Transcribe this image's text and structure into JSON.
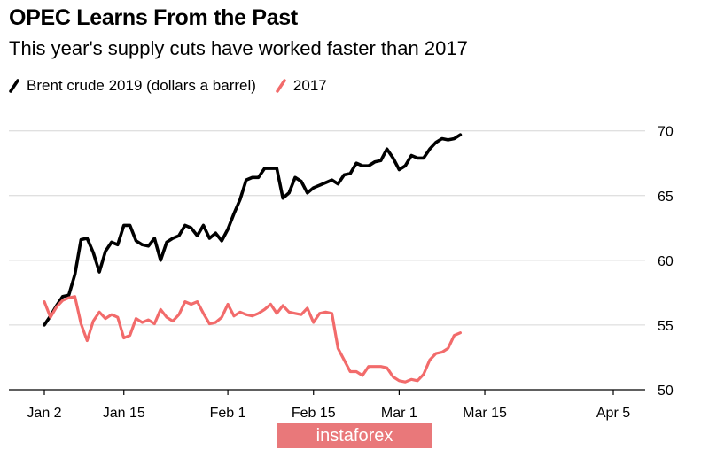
{
  "chart_data": {
    "type": "line",
    "title": "OPEC Learns From the Past",
    "subtitle": "This year's supply cuts have worked faster than 2017",
    "x_ticks": [
      {
        "label": "Jan 2",
        "day": 0
      },
      {
        "label": "Jan 15",
        "day": 13
      },
      {
        "label": "Feb 1",
        "day": 30
      },
      {
        "label": "Feb 15",
        "day": 44
      },
      {
        "label": "Mar 1",
        "day": 58
      },
      {
        "label": "Mar 15",
        "day": 72
      },
      {
        "label": "Apr 5",
        "day": 93
      }
    ],
    "y_ticks": [
      50,
      55,
      60,
      65,
      70
    ],
    "ylim": [
      50,
      70.8
    ],
    "xlim": [
      0,
      93
    ],
    "grid": "horizontal",
    "legend_position": "top-left",
    "series": [
      {
        "name": "Brent crude 2019 (dollars a barrel)",
        "color": "#000000",
        "points": [
          [
            0,
            55.0
          ],
          [
            1,
            55.7
          ],
          [
            2,
            56.5
          ],
          [
            3,
            57.2
          ],
          [
            4,
            57.3
          ],
          [
            5,
            58.9
          ],
          [
            6,
            61.6
          ],
          [
            7,
            61.7
          ],
          [
            8,
            60.6
          ],
          [
            9,
            59.1
          ],
          [
            10,
            60.7
          ],
          [
            11,
            61.4
          ],
          [
            12,
            61.2
          ],
          [
            13,
            62.7
          ],
          [
            14,
            62.7
          ],
          [
            15,
            61.5
          ],
          [
            16,
            61.2
          ],
          [
            17,
            61.1
          ],
          [
            18,
            61.7
          ],
          [
            19,
            60.0
          ],
          [
            20,
            61.4
          ],
          [
            21,
            61.7
          ],
          [
            22,
            61.9
          ],
          [
            23,
            62.7
          ],
          [
            24,
            62.5
          ],
          [
            25,
            61.9
          ],
          [
            26,
            62.7
          ],
          [
            27,
            61.7
          ],
          [
            28,
            62.1
          ],
          [
            29,
            61.5
          ],
          [
            30,
            62.4
          ],
          [
            31,
            63.6
          ],
          [
            32,
            64.7
          ],
          [
            33,
            66.2
          ],
          [
            34,
            66.4
          ],
          [
            35,
            66.4
          ],
          [
            36,
            67.1
          ],
          [
            37,
            67.1
          ],
          [
            38,
            67.1
          ],
          [
            39,
            64.8
          ],
          [
            40,
            65.2
          ],
          [
            41,
            66.4
          ],
          [
            42,
            66.1
          ],
          [
            43,
            65.2
          ],
          [
            44,
            65.6
          ],
          [
            45,
            65.8
          ],
          [
            46,
            66.0
          ],
          [
            47,
            66.2
          ],
          [
            48,
            65.9
          ],
          [
            49,
            66.6
          ],
          [
            50,
            66.7
          ],
          [
            51,
            67.5
          ],
          [
            52,
            67.3
          ],
          [
            53,
            67.3
          ],
          [
            54,
            67.6
          ],
          [
            55,
            67.7
          ],
          [
            56,
            68.6
          ],
          [
            57,
            67.9
          ],
          [
            58,
            67.0
          ],
          [
            59,
            67.3
          ],
          [
            60,
            68.1
          ],
          [
            61,
            67.9
          ],
          [
            62,
            67.9
          ],
          [
            63,
            68.6
          ],
          [
            64,
            69.1
          ],
          [
            65,
            69.4
          ],
          [
            66,
            69.3
          ],
          [
            67,
            69.4
          ],
          [
            68,
            69.7
          ]
        ]
      },
      {
        "name": "2017",
        "color": "#f26b6b",
        "points": [
          [
            0,
            56.8
          ],
          [
            1,
            55.6
          ],
          [
            2,
            56.4
          ],
          [
            3,
            56.9
          ],
          [
            4,
            57.1
          ],
          [
            5,
            57.2
          ],
          [
            6,
            55.1
          ],
          [
            7,
            53.8
          ],
          [
            8,
            55.3
          ],
          [
            9,
            56.0
          ],
          [
            10,
            55.5
          ],
          [
            11,
            55.8
          ],
          [
            12,
            55.6
          ],
          [
            13,
            54.0
          ],
          [
            14,
            54.2
          ],
          [
            15,
            55.5
          ],
          [
            16,
            55.2
          ],
          [
            17,
            55.4
          ],
          [
            18,
            55.1
          ],
          [
            19,
            56.2
          ],
          [
            20,
            55.6
          ],
          [
            21,
            55.3
          ],
          [
            22,
            55.8
          ],
          [
            23,
            56.8
          ],
          [
            24,
            56.6
          ],
          [
            25,
            56.8
          ],
          [
            26,
            55.9
          ],
          [
            27,
            55.1
          ],
          [
            28,
            55.2
          ],
          [
            29,
            55.6
          ],
          [
            30,
            56.6
          ],
          [
            31,
            55.7
          ],
          [
            32,
            56.0
          ],
          [
            33,
            55.8
          ],
          [
            34,
            55.7
          ],
          [
            35,
            55.9
          ],
          [
            36,
            56.2
          ],
          [
            37,
            56.6
          ],
          [
            38,
            55.9
          ],
          [
            39,
            56.5
          ],
          [
            40,
            56.0
          ],
          [
            41,
            55.9
          ],
          [
            42,
            55.8
          ],
          [
            43,
            56.3
          ],
          [
            44,
            55.2
          ],
          [
            45,
            55.9
          ],
          [
            46,
            56.0
          ],
          [
            47,
            55.9
          ],
          [
            48,
            53.2
          ],
          [
            49,
            52.3
          ],
          [
            50,
            51.4
          ],
          [
            51,
            51.4
          ],
          [
            52,
            51.1
          ],
          [
            53,
            51.8
          ],
          [
            54,
            51.8
          ],
          [
            55,
            51.8
          ],
          [
            56,
            51.7
          ],
          [
            57,
            51.0
          ],
          [
            58,
            50.7
          ],
          [
            59,
            50.6
          ],
          [
            60,
            50.8
          ],
          [
            61,
            50.7
          ],
          [
            62,
            51.2
          ],
          [
            63,
            52.3
          ],
          [
            64,
            52.8
          ],
          [
            65,
            52.9
          ],
          [
            66,
            53.2
          ],
          [
            67,
            54.2
          ],
          [
            68,
            54.4
          ]
        ]
      }
    ]
  },
  "watermark": "instaforex"
}
